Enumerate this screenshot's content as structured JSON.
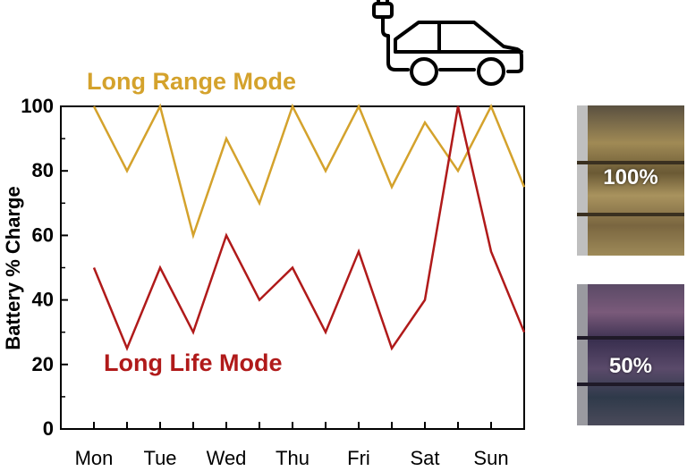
{
  "chart_data": {
    "type": "line",
    "categories": [
      "Mon",
      "Tue",
      "Wed",
      "Thu",
      "Fri",
      "Sat",
      "Sun"
    ],
    "x": [
      1,
      1.5,
      2,
      2.5,
      3,
      3.5,
      4,
      4.5,
      5,
      5.5,
      6,
      6.5,
      7,
      7.5
    ],
    "ylabel": "Battery % Charge",
    "ylim": [
      0,
      100
    ],
    "yticks": [
      "0",
      "20",
      "40",
      "60",
      "80",
      "100"
    ],
    "series": [
      {
        "name": "Long Range Mode",
        "color": "#d4a22c",
        "values": [
          100,
          80,
          100,
          60,
          90,
          70,
          100,
          80,
          100,
          75,
          95,
          80,
          100,
          75
        ]
      },
      {
        "name": "Long Life Mode",
        "color": "#b01a1a",
        "values": [
          50,
          25,
          50,
          30,
          60,
          40,
          50,
          30,
          55,
          25,
          40,
          100,
          55,
          30
        ]
      }
    ],
    "grid": false
  },
  "photos": [
    {
      "label": "100%",
      "tone": "#8a7a4a"
    },
    {
      "label": "50%",
      "tone": "#4a3a5a"
    }
  ],
  "icon": "electric-car-icon"
}
